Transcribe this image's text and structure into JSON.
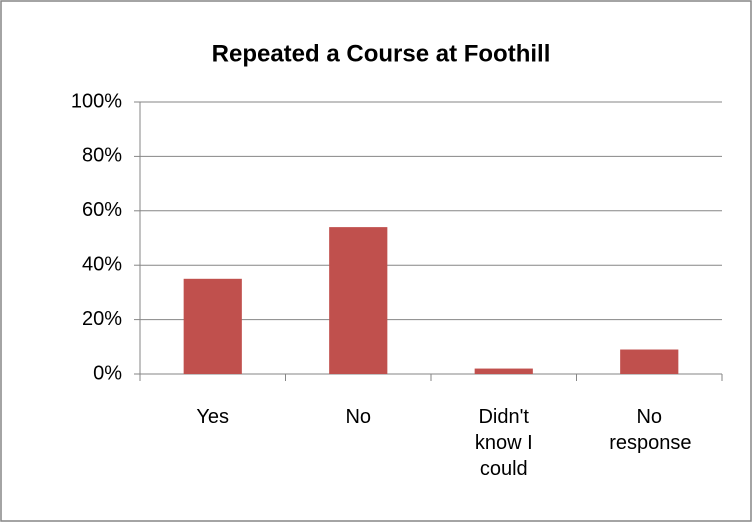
{
  "chart_data": {
    "type": "bar",
    "title": "Repeated a Course at Foothill",
    "categories": [
      "Yes",
      "No",
      "Didn't know I could",
      "No response"
    ],
    "values": [
      35,
      54,
      2,
      9
    ],
    "color": "#c0504d",
    "ylim": [
      0,
      100
    ],
    "yticks": [
      {
        "value": 0,
        "label": "0%"
      },
      {
        "value": 20,
        "label": "20%"
      },
      {
        "value": 40,
        "label": "40%"
      },
      {
        "value": 60,
        "label": "60%"
      },
      {
        "value": 80,
        "label": "80%"
      },
      {
        "value": 100,
        "label": "100%"
      }
    ],
    "grid": true
  }
}
